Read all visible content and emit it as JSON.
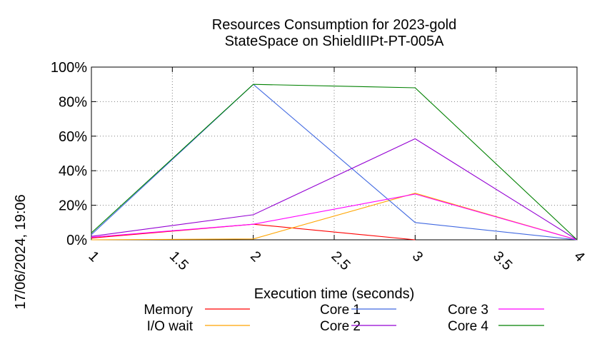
{
  "timestamp": "17/06/2024, 19:06",
  "chart_data": {
    "type": "line",
    "title_lines": [
      "Resources Consumption for 2023-gold",
      "StateSpace on ShieldIIPt-PT-005A"
    ],
    "xlabel": "Execution time (seconds)",
    "ylabel": "",
    "xlim": [
      1,
      4
    ],
    "ylim": [
      0,
      100
    ],
    "x_ticks": [
      1,
      1.5,
      2,
      2.5,
      3,
      3.5,
      4
    ],
    "x_tick_labels": [
      "1",
      "1.5",
      "2",
      "2.5",
      "3",
      "3.5",
      "4"
    ],
    "y_ticks": [
      0,
      20,
      40,
      60,
      80,
      100
    ],
    "y_tick_labels": [
      "0%",
      "20%",
      "40%",
      "60%",
      "80%",
      "100%"
    ],
    "grid": true,
    "legend_position": "bottom",
    "series": [
      {
        "name": "Memory",
        "color": "#ff0000",
        "x": [
          1,
          2,
          3
        ],
        "y": [
          1,
          9,
          0
        ]
      },
      {
        "name": "I/O wait",
        "color": "#ffa500",
        "x": [
          1,
          2,
          3,
          4
        ],
        "y": [
          0,
          0.5,
          27,
          0
        ]
      },
      {
        "name": "Core 1",
        "color": "#4169e1",
        "x": [
          1,
          2,
          3,
          4
        ],
        "y": [
          3,
          90,
          10,
          0
        ]
      },
      {
        "name": "Core 2",
        "color": "#9400d3",
        "x": [
          1,
          2,
          3,
          4
        ],
        "y": [
          2,
          14.5,
          58.5,
          0
        ]
      },
      {
        "name": "Core 3",
        "color": "#ff00ff",
        "x": [
          1,
          2,
          3,
          4
        ],
        "y": [
          1.5,
          9,
          26.5,
          0
        ]
      },
      {
        "name": "Core 4",
        "color": "#008000",
        "x": [
          1,
          2,
          3,
          4
        ],
        "y": [
          4,
          90,
          88,
          0
        ]
      }
    ]
  }
}
